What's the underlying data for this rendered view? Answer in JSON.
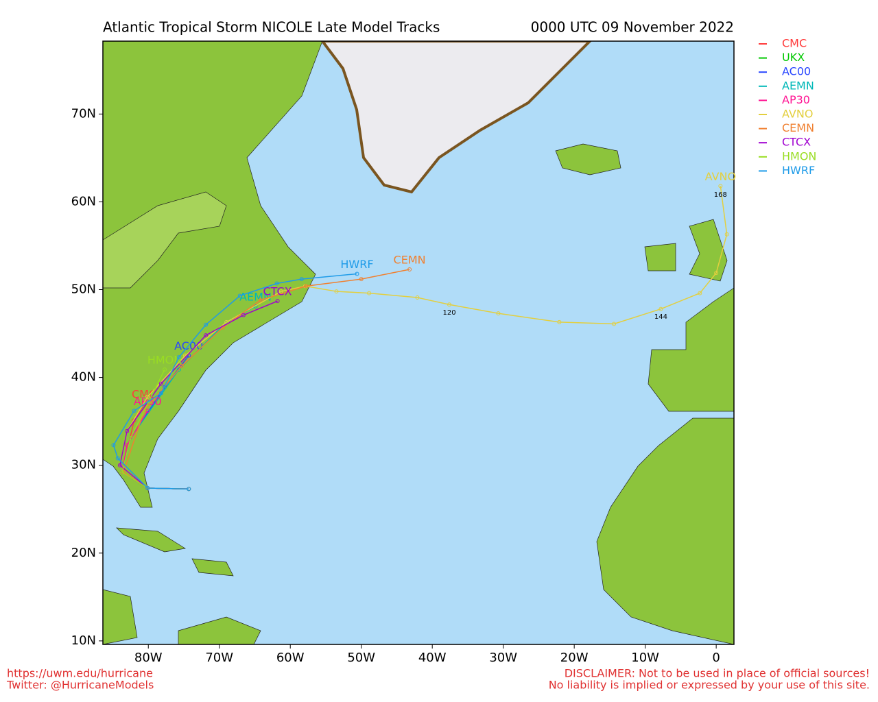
{
  "header": {
    "title": "Atlantic Tropical Storm NICOLE Late Model Tracks",
    "timestamp": "0000 UTC 09 November 2022"
  },
  "map": {
    "xlim": [
      -86.4,
      2.5
    ],
    "ylim": [
      9.6,
      78.3
    ],
    "xticks": [
      {
        "value": -80,
        "label": "80W"
      },
      {
        "value": -70,
        "label": "70W"
      },
      {
        "value": -60,
        "label": "60W"
      },
      {
        "value": -50,
        "label": "50W"
      },
      {
        "value": -40,
        "label": "40W"
      },
      {
        "value": -30,
        "label": "30W"
      },
      {
        "value": -20,
        "label": "20W"
      },
      {
        "value": -10,
        "label": "10W"
      },
      {
        "value": 0,
        "label": "0"
      }
    ],
    "yticks": [
      {
        "value": 10,
        "label": "10N"
      },
      {
        "value": 20,
        "label": "20N"
      },
      {
        "value": 30,
        "label": "30N"
      },
      {
        "value": 40,
        "label": "40N"
      },
      {
        "value": 50,
        "label": "50N"
      },
      {
        "value": 60,
        "label": "60N"
      },
      {
        "value": 70,
        "label": "70N"
      }
    ]
  },
  "models": [
    {
      "name": "CMC",
      "color": "#ff3b3b",
      "lon": [
        -74.3,
        -80.1,
        -83.7,
        -82.0,
        -80.6
      ],
      "lat": [
        27.3,
        27.4,
        29.2,
        35.1,
        37.0
      ]
    },
    {
      "name": "UKX",
      "color": "#00c800",
      "lon": [],
      "lat": []
    },
    {
      "name": "AC00",
      "color": "#2846ff",
      "lon": [
        -74.3,
        -80.1,
        -83.7,
        -82.5,
        -77.7,
        -74.3
      ],
      "lat": [
        27.3,
        27.4,
        29.2,
        33.1,
        38.9,
        42.5
      ]
    },
    {
      "name": "AEMN",
      "color": "#00b8b8",
      "lon": [
        -74.3,
        -80.1,
        -83.7,
        -82.5,
        -75.7,
        -69.0,
        -64.9
      ],
      "lat": [
        27.3,
        27.4,
        29.2,
        33.1,
        40.9,
        46.3,
        48.1
      ]
    },
    {
      "name": "AP30",
      "color": "#ff1493",
      "lon": [
        -74.3,
        -80.1,
        -83.7,
        -83.0,
        -80.1
      ],
      "lat": [
        27.3,
        27.4,
        29.2,
        32.3,
        36.2
      ]
    },
    {
      "name": "AVNO",
      "color": "#e3cf3e",
      "lon": [
        -74.3,
        -80.1,
        -84.0,
        -83.0,
        -80.1,
        -74.8,
        -69.0,
        -61.3,
        -57.9,
        -53.5,
        -48.9,
        -42.1,
        -37.6,
        -30.7,
        -22.1,
        -14.4,
        -7.8,
        -2.3,
        0,
        1.5,
        0.6
      ],
      "lat": [
        27.3,
        27.4,
        30.0,
        33.9,
        37.8,
        42.5,
        46.3,
        49.8,
        50.4,
        49.8,
        49.6,
        49.1,
        48.3,
        47.3,
        46.3,
        46.1,
        47.8,
        49.6,
        51.9,
        56.3,
        61.8
      ]
    },
    {
      "name": "CEMN",
      "color": "#f08030",
      "lon": [
        -74.3,
        -80.1,
        -83.5,
        -80.6,
        -75.3,
        -69.5,
        -64.2,
        -57.8,
        -50.0,
        -43.2
      ],
      "lat": [
        27.3,
        27.4,
        29.2,
        36.2,
        41.3,
        45.7,
        48.8,
        50.4,
        51.2,
        52.3
      ]
    },
    {
      "name": "CTCX",
      "color": "#a000d0",
      "lon": [
        -74.3,
        -80.1,
        -84.0,
        -83.0,
        -78.2,
        -71.9,
        -66.6,
        -61.8
      ],
      "lat": [
        27.3,
        27.4,
        30.0,
        33.9,
        39.3,
        44.8,
        47.1,
        48.7
      ]
    },
    {
      "name": "HMON",
      "color": "#99dd22",
      "lon": [
        -74.3,
        -80.1,
        -83.7,
        -82.5,
        -77.7
      ],
      "lat": [
        27.3,
        27.4,
        29.2,
        33.1,
        40.9
      ]
    },
    {
      "name": "HWRF",
      "color": "#1e9be8",
      "lon": [
        -74.3,
        -80.1,
        -84.3,
        -84.9,
        -82.0,
        -78.2,
        -75.7,
        -71.9,
        -67.1,
        -61.9,
        -58.4,
        -50.6
      ],
      "lat": [
        27.3,
        27.4,
        30.8,
        32.3,
        36.2,
        38.2,
        42.3,
        46.0,
        49.3,
        50.7,
        51.2,
        51.8
      ]
    }
  ],
  "hour_labels": [
    {
      "text": "120",
      "lon": -37.6,
      "lat": 47.4
    },
    {
      "text": "144",
      "lon": -7.8,
      "lat": 46.9
    },
    {
      "text": "168",
      "lon": 0.6,
      "lat": 60.8
    }
  ],
  "footer": {
    "left": [
      "https://uwm.edu/hurricane",
      "Twitter: @HurricaneModels"
    ],
    "right": [
      "DISCLAIMER: Not to be used in place of official sources!",
      "No liability is implied or expressed by your use of this site."
    ]
  }
}
